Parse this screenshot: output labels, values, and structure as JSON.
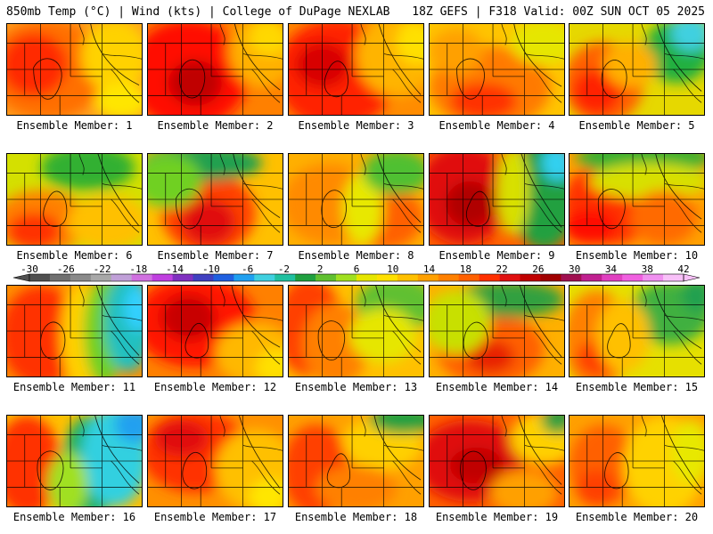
{
  "header": {
    "left": "850mb Temp (°C) | Wind (kts) | College of DuPage NEXLAB",
    "right": "18Z GEFS | F318 Valid: 00Z SUN OCT 05 2025"
  },
  "panels": [
    {
      "label": "Ensemble Member: 1",
      "bg": "#ffa020",
      "blobs": [
        [
          "#ff7000",
          0.3,
          0.5,
          0.45,
          0.55
        ],
        [
          "#ff2a00",
          0.2,
          0.45,
          0.25,
          0.35
        ],
        [
          "#ffd200",
          0.8,
          0.35,
          0.25,
          0.4
        ],
        [
          "#ffe600",
          0.85,
          0.85,
          0.2,
          0.2
        ]
      ]
    },
    {
      "label": "Ensemble Member: 2",
      "bg": "#ff8000",
      "blobs": [
        [
          "#ff1000",
          0.3,
          0.55,
          0.45,
          0.6
        ],
        [
          "#c00000",
          0.35,
          0.65,
          0.2,
          0.25
        ],
        [
          "#ffb000",
          0.85,
          0.3,
          0.25,
          0.4
        ],
        [
          "#ffd800",
          0.9,
          0.15,
          0.15,
          0.2
        ]
      ]
    },
    {
      "label": "Ensemble Member: 3",
      "bg": "#ff8c00",
      "blobs": [
        [
          "#ff2000",
          0.35,
          0.55,
          0.45,
          0.6
        ],
        [
          "#d80000",
          0.25,
          0.45,
          0.2,
          0.25
        ],
        [
          "#ffb400",
          0.8,
          0.35,
          0.3,
          0.45
        ],
        [
          "#ffe000",
          0.95,
          0.2,
          0.15,
          0.25
        ]
      ]
    },
    {
      "label": "Ensemble Member: 4",
      "bg": "#ffc400",
      "blobs": [
        [
          "#ff7a00",
          0.45,
          0.7,
          0.45,
          0.45
        ],
        [
          "#ff3000",
          0.4,
          0.85,
          0.25,
          0.2
        ],
        [
          "#e6e600",
          0.85,
          0.2,
          0.25,
          0.25
        ],
        [
          "#ffa000",
          0.2,
          0.3,
          0.2,
          0.25
        ]
      ]
    },
    {
      "label": "Ensemble Member: 5",
      "bg": "#e6d800",
      "blobs": [
        [
          "#ff6000",
          0.25,
          0.65,
          0.3,
          0.45
        ],
        [
          "#ff2000",
          0.2,
          0.75,
          0.18,
          0.25
        ],
        [
          "#20b040",
          0.8,
          0.3,
          0.25,
          0.35
        ],
        [
          "#40d0e0",
          0.9,
          0.1,
          0.15,
          0.2
        ],
        [
          "#ffb000",
          0.45,
          0.45,
          0.2,
          0.25
        ]
      ]
    },
    {
      "label": "Ensemble Member: 6",
      "bg": "#d4e000",
      "blobs": [
        [
          "#ff8000",
          0.25,
          0.75,
          0.35,
          0.35
        ],
        [
          "#ff3000",
          0.2,
          0.85,
          0.2,
          0.2
        ],
        [
          "#30b030",
          0.6,
          0.15,
          0.35,
          0.25
        ],
        [
          "#ffc000",
          0.75,
          0.75,
          0.3,
          0.3
        ]
      ]
    },
    {
      "label": "Ensemble Member: 7",
      "bg": "#ffc000",
      "blobs": [
        [
          "#ff4000",
          0.45,
          0.65,
          0.35,
          0.45
        ],
        [
          "#e01010",
          0.45,
          0.75,
          0.2,
          0.25
        ],
        [
          "#20a050",
          0.4,
          0.1,
          0.45,
          0.2
        ],
        [
          "#70d020",
          0.15,
          0.3,
          0.25,
          0.3
        ]
      ]
    },
    {
      "label": "Ensemble Member: 8",
      "bg": "#ffb000",
      "blobs": [
        [
          "#ff8a00",
          0.3,
          0.55,
          0.35,
          0.45
        ],
        [
          "#ff6000",
          0.7,
          0.7,
          0.3,
          0.35
        ],
        [
          "#e8e800",
          0.55,
          0.6,
          0.15,
          0.4
        ],
        [
          "#50c030",
          0.8,
          0.2,
          0.25,
          0.25
        ]
      ]
    },
    {
      "label": "Ensemble Member: 9",
      "bg": "#ff6000",
      "blobs": [
        [
          "#e01010",
          0.25,
          0.45,
          0.35,
          0.55
        ],
        [
          "#b00000",
          0.3,
          0.55,
          0.18,
          0.25
        ],
        [
          "#20a040",
          0.85,
          0.45,
          0.25,
          0.6
        ],
        [
          "#30d0f0",
          0.95,
          0.1,
          0.12,
          0.2
        ],
        [
          "#d8e000",
          0.62,
          0.4,
          0.12,
          0.5
        ]
      ]
    },
    {
      "label": "Ensemble Member: 10",
      "bg": "#ffa000",
      "blobs": [
        [
          "#ff3000",
          0.3,
          0.55,
          0.35,
          0.45
        ],
        [
          "#ff1000",
          0.15,
          0.8,
          0.2,
          0.2
        ],
        [
          "#30b030",
          0.55,
          0.05,
          0.5,
          0.18
        ],
        [
          "#d8e000",
          0.6,
          0.3,
          0.45,
          0.2
        ],
        [
          "#ff6a00",
          0.7,
          0.7,
          0.25,
          0.3
        ]
      ]
    },
    {
      "label": "Ensemble Member: 11",
      "bg": "#ff9000",
      "blobs": [
        [
          "#ff3000",
          0.25,
          0.55,
          0.3,
          0.55
        ],
        [
          "#ffd000",
          0.55,
          0.55,
          0.15,
          0.6
        ],
        [
          "#70d020",
          0.72,
          0.5,
          0.15,
          0.6
        ],
        [
          "#20c0c0",
          0.9,
          0.4,
          0.18,
          0.55
        ],
        [
          "#30d0ff",
          0.97,
          0.25,
          0.1,
          0.25
        ]
      ]
    },
    {
      "label": "Ensemble Member: 12",
      "bg": "#ff8000",
      "blobs": [
        [
          "#ff1800",
          0.35,
          0.4,
          0.45,
          0.5
        ],
        [
          "#c80000",
          0.3,
          0.35,
          0.2,
          0.25
        ],
        [
          "#ffb800",
          0.8,
          0.75,
          0.3,
          0.35
        ],
        [
          "#ffe000",
          0.95,
          0.9,
          0.15,
          0.2
        ]
      ]
    },
    {
      "label": "Ensemble Member: 13",
      "bg": "#ffc000",
      "blobs": [
        [
          "#ff4000",
          0.15,
          0.45,
          0.25,
          0.55
        ],
        [
          "#ff8000",
          0.35,
          0.65,
          0.25,
          0.45
        ],
        [
          "#60c030",
          0.8,
          0.2,
          0.3,
          0.3
        ],
        [
          "#e6e600",
          0.7,
          0.55,
          0.25,
          0.3
        ]
      ]
    },
    {
      "label": "Ensemble Member: 14",
      "bg": "#ffb000",
      "blobs": [
        [
          "#ff6000",
          0.45,
          0.7,
          0.4,
          0.4
        ],
        [
          "#e82000",
          0.45,
          0.78,
          0.18,
          0.18
        ],
        [
          "#30a040",
          0.6,
          0.15,
          0.4,
          0.2
        ],
        [
          "#c8e000",
          0.2,
          0.4,
          0.25,
          0.35
        ]
      ]
    },
    {
      "label": "Ensemble Member: 15",
      "bg": "#e6e000",
      "blobs": [
        [
          "#ff8000",
          0.2,
          0.6,
          0.25,
          0.55
        ],
        [
          "#ff4000",
          0.2,
          0.8,
          0.15,
          0.2
        ],
        [
          "#40b040",
          0.75,
          0.3,
          0.3,
          0.35
        ],
        [
          "#ffc000",
          0.4,
          0.55,
          0.2,
          0.4
        ],
        [
          "#20a050",
          0.95,
          0.1,
          0.12,
          0.2
        ]
      ]
    },
    {
      "label": "Ensemble Member: 16",
      "bg": "#ffc000",
      "blobs": [
        [
          "#ff3000",
          0.15,
          0.55,
          0.25,
          0.55
        ],
        [
          "#20b060",
          0.6,
          0.6,
          0.2,
          0.6
        ],
        [
          "#30d0e0",
          0.8,
          0.45,
          0.25,
          0.55
        ],
        [
          "#20a0f0",
          0.95,
          0.1,
          0.15,
          0.2
        ],
        [
          "#a0e020",
          0.45,
          0.75,
          0.15,
          0.35
        ]
      ]
    },
    {
      "label": "Ensemble Member: 17",
      "bg": "#ff9000",
      "blobs": [
        [
          "#ff3000",
          0.35,
          0.4,
          0.4,
          0.45
        ],
        [
          "#e01010",
          0.25,
          0.25,
          0.2,
          0.2
        ],
        [
          "#ffc000",
          0.8,
          0.6,
          0.3,
          0.45
        ],
        [
          "#ffe600",
          0.9,
          0.9,
          0.15,
          0.2
        ]
      ]
    },
    {
      "label": "Ensemble Member: 18",
      "bg": "#ffa000",
      "blobs": [
        [
          "#ff4000",
          0.2,
          0.6,
          0.25,
          0.5
        ],
        [
          "#ffd000",
          0.7,
          0.3,
          0.3,
          0.3
        ],
        [
          "#20a040",
          0.85,
          0.05,
          0.25,
          0.15
        ],
        [
          "#ff8000",
          0.5,
          0.8,
          0.3,
          0.25
        ]
      ]
    },
    {
      "label": "Ensemble Member: 19",
      "bg": "#ff6000",
      "blobs": [
        [
          "#e01010",
          0.3,
          0.5,
          0.4,
          0.45
        ],
        [
          "#c00000",
          0.35,
          0.55,
          0.2,
          0.2
        ],
        [
          "#ffd000",
          0.85,
          0.25,
          0.25,
          0.3
        ],
        [
          "#30a040",
          0.95,
          0.05,
          0.12,
          0.15
        ],
        [
          "#ffa000",
          0.7,
          0.85,
          0.25,
          0.25
        ]
      ]
    },
    {
      "label": "Ensemble Member: 20",
      "bg": "#ffa000",
      "blobs": [
        [
          "#ff6000",
          0.25,
          0.55,
          0.25,
          0.45
        ],
        [
          "#ffd200",
          0.7,
          0.55,
          0.3,
          0.55
        ],
        [
          "#e8e800",
          0.9,
          0.4,
          0.15,
          0.35
        ],
        [
          "#ff4000",
          0.2,
          0.8,
          0.15,
          0.2
        ]
      ]
    }
  ],
  "colorbar": {
    "ticks": [
      "-30",
      "-26",
      "-22",
      "-18",
      "-14",
      "-10",
      "-6",
      "-2",
      "2",
      "6",
      "10",
      "14",
      "18",
      "22",
      "26",
      "30",
      "34",
      "38",
      "42"
    ],
    "colors": [
      "#505050",
      "#707070",
      "#8a8a8a",
      "#a8a8a8",
      "#c0a0d8",
      "#d070e0",
      "#c040e0",
      "#8030c0",
      "#4040c0",
      "#2060e0",
      "#20a0f0",
      "#40d0e0",
      "#20c0a0",
      "#20a040",
      "#60c030",
      "#a0e020",
      "#e6e600",
      "#ffe000",
      "#ffc000",
      "#ffa000",
      "#ff8000",
      "#ff6000",
      "#ff3000",
      "#e01010",
      "#c00000",
      "#a00000",
      "#a01050",
      "#c02090",
      "#e040c0",
      "#f060e0",
      "#f090f0",
      "#f8c0f8"
    ],
    "tick_colors": [
      "#000000"
    ]
  }
}
